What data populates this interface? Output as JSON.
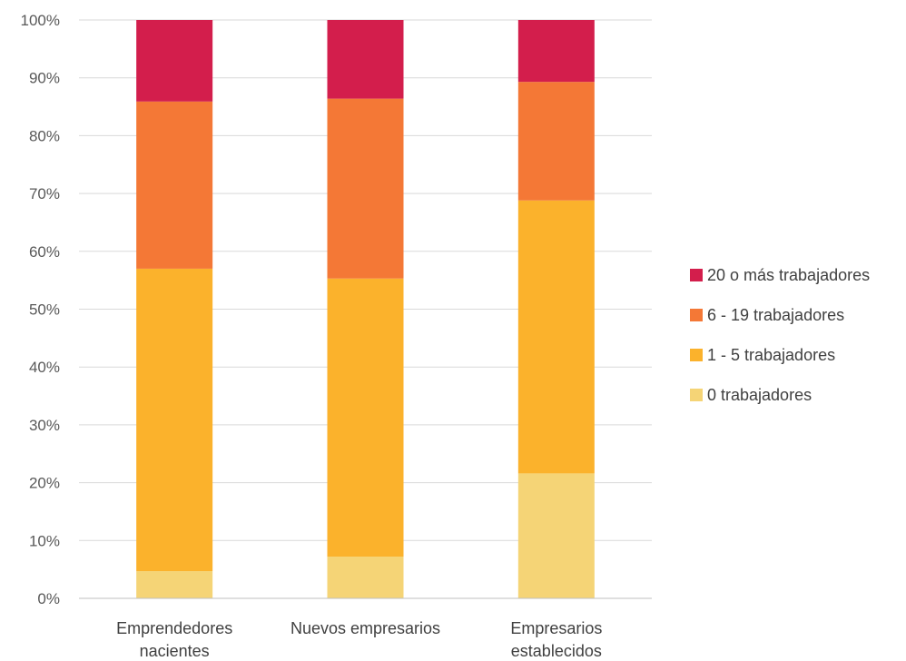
{
  "chart_data": {
    "type": "bar",
    "stacked": true,
    "percent": true,
    "categories": [
      [
        "Emprendedores",
        "nacientes"
      ],
      [
        "Nuevos empresarios"
      ],
      [
        "Empresarios",
        "establecidos"
      ]
    ],
    "series": [
      {
        "name": "0 trabajadores",
        "color": "#f5d476",
        "values": [
          4.7,
          7.2,
          21.6
        ]
      },
      {
        "name": "1 - 5 trabajadores",
        "color": "#fbb22c",
        "values": [
          52.3,
          48.1,
          47.2
        ]
      },
      {
        "name": "6 - 19 trabajadores",
        "color": "#f47836",
        "values": [
          28.9,
          31.1,
          20.5
        ]
      },
      {
        "name": "20 o más trabajadores",
        "color": "#d31e4c",
        "values": [
          14.1,
          13.6,
          10.7
        ]
      }
    ],
    "ylim": [
      0,
      100
    ],
    "yticks": [
      "0%",
      "10%",
      "20%",
      "30%",
      "40%",
      "50%",
      "60%",
      "70%",
      "80%",
      "90%",
      "100%"
    ],
    "grid": true,
    "legend": "right"
  }
}
